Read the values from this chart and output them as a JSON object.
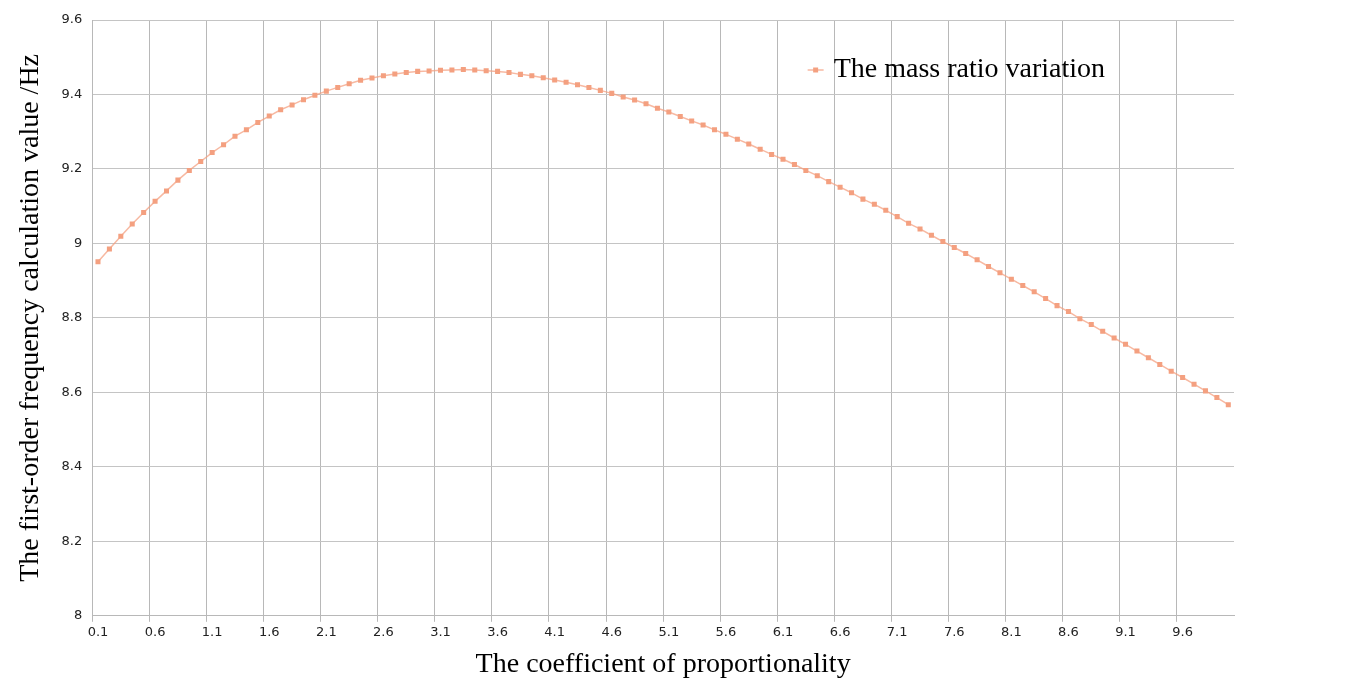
{
  "chart_data": {
    "type": "line",
    "xlabel": "The coefficient of proportionality",
    "ylabel": "The first-order frequency calculation value /Hz",
    "categories": [
      "0.1",
      null,
      null,
      null,
      null,
      "0.6",
      null,
      null,
      null,
      null,
      "1.1",
      null,
      null,
      null,
      null,
      "1.6",
      null,
      null,
      null,
      null,
      "2.1",
      null,
      null,
      null,
      null,
      "2.6",
      null,
      null,
      null,
      null,
      "3.1",
      null,
      null,
      null,
      null,
      "3.6",
      null,
      null,
      null,
      null,
      "4.1",
      null,
      null,
      null,
      null,
      "4.6",
      null,
      null,
      null,
      null,
      "5.1",
      null,
      null,
      null,
      null,
      "5.6",
      null,
      null,
      null,
      null,
      "6.1",
      null,
      null,
      null,
      null,
      "6.6",
      null,
      null,
      null,
      null,
      "7.1",
      null,
      null,
      null,
      null,
      "7.6",
      null,
      null,
      null,
      null,
      "8.1",
      null,
      null,
      null,
      null,
      "8.6",
      null,
      null,
      null,
      null,
      "9.1",
      null,
      null,
      null,
      null,
      "9.6",
      null,
      null,
      null,
      null
    ],
    "series": [
      {
        "name": "The mass ratio variation",
        "color": "#f4a080",
        "values": [
          8.951,
          8.985,
          9.019,
          9.052,
          9.083,
          9.113,
          9.141,
          9.17,
          9.196,
          9.22,
          9.244,
          9.265,
          9.288,
          9.305,
          9.325,
          9.342,
          9.359,
          9.372,
          9.386,
          9.398,
          9.409,
          9.419,
          9.429,
          9.438,
          9.444,
          9.45,
          9.455,
          9.459,
          9.462,
          9.463,
          9.465,
          9.466,
          9.467,
          9.466,
          9.464,
          9.462,
          9.459,
          9.454,
          9.45,
          9.445,
          9.439,
          9.433,
          9.426,
          9.419,
          9.411,
          9.403,
          9.393,
          9.385,
          9.375,
          9.363,
          9.353,
          9.341,
          9.329,
          9.318,
          9.305,
          9.293,
          9.28,
          9.267,
          9.253,
          9.239,
          9.226,
          9.212,
          9.196,
          9.182,
          9.166,
          9.151,
          9.136,
          9.119,
          9.105,
          9.089,
          9.072,
          9.054,
          9.039,
          9.022,
          9.005,
          8.989,
          8.973,
          8.956,
          8.938,
          8.921,
          8.904,
          8.887,
          8.87,
          8.852,
          8.833,
          8.817,
          8.798,
          8.782,
          8.764,
          8.746,
          8.729,
          8.711,
          8.693,
          8.675,
          8.657,
          8.64,
          8.622,
          8.604,
          8.586,
          8.567
        ]
      }
    ],
    "ylim": [
      8,
      9.6
    ],
    "yticks": [
      8,
      8.2,
      8.4,
      8.6,
      8.8,
      {
        "value": 9,
        "label": "9"
      },
      9.2,
      9.4,
      9.6
    ],
    "grid": true,
    "legend": "top right",
    "marker": "square",
    "line_style": "solid"
  }
}
